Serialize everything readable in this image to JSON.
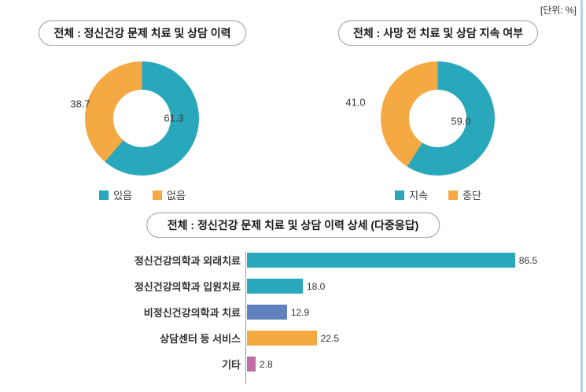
{
  "unit_label": "[단위: %]",
  "colors": {
    "teal": "#29A8BC",
    "orange": "#F5A942",
    "blue": "#5F81BE",
    "pink": "#C06CA6",
    "page_edge": "#B5D3E8"
  },
  "chart_data": [
    {
      "type": "pie",
      "donut": true,
      "title": "전체 : 정신건강 문제 치료 및 상담 이력",
      "labels": [
        "있음",
        "없음"
      ],
      "values": [
        61.3,
        38.7
      ],
      "value_labels": [
        "61.3",
        "38.7"
      ],
      "colors": [
        "#29A8BC",
        "#F5A942"
      ],
      "legend_position": "bottom",
      "unit": "%"
    },
    {
      "type": "pie",
      "donut": true,
      "title": "전체 : 사망 전 치료 및 상담 지속 여부",
      "labels": [
        "지속",
        "중단"
      ],
      "values": [
        59.0,
        41.0
      ],
      "value_labels": [
        "59.0",
        "41.0"
      ],
      "colors": [
        "#29A8BC",
        "#F5A942"
      ],
      "legend_position": "bottom",
      "unit": "%"
    },
    {
      "type": "bar",
      "orientation": "horizontal",
      "title": "전체 : 정신건강 문제 치료 및 상담 이력 상세 (다중응답)",
      "categories": [
        "정신건강의학과 외래치료",
        "정신건강의학과 입원치료",
        "비정신건강의학과 치료",
        "상담센터 등 서비스",
        "기타"
      ],
      "values": [
        86.5,
        18.0,
        12.9,
        22.5,
        2.8
      ],
      "value_labels": [
        "86.5",
        "18.0",
        "12.9",
        "22.5",
        "2.8"
      ],
      "colors": [
        "#29A8BC",
        "#29A8BC",
        "#5F81BE",
        "#F5A942",
        "#C06CA6"
      ],
      "xlim": [
        0,
        100
      ],
      "grid": false,
      "unit": "%"
    }
  ]
}
